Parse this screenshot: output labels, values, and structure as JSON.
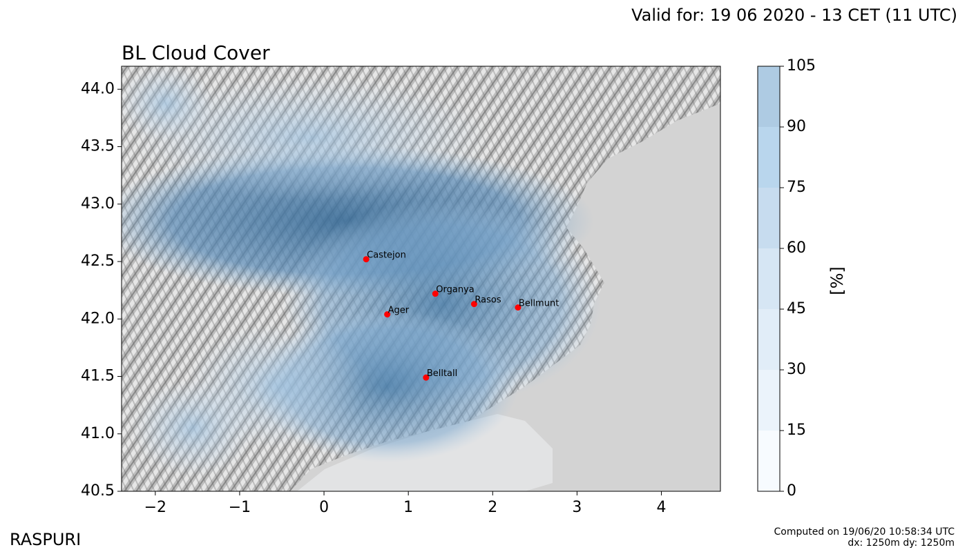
{
  "header": {
    "valid_text": "Valid for: 19 06 2020 - 13 CET (11 UTC)",
    "title": "BL Cloud Cover"
  },
  "footer": {
    "brand": "RASPURI",
    "computed_line1": "Computed on 19/06/20 10:58:34 UTC",
    "computed_line2": "dx: 1250m dy: 1250m"
  },
  "map": {
    "xlim": [
      -2.4,
      4.7
    ],
    "ylim": [
      40.5,
      44.2
    ],
    "x_ticks": [
      -2,
      -1,
      0,
      1,
      2,
      3,
      4
    ],
    "x_tick_labels": [
      "−2",
      "−1",
      "0",
      "1",
      "2",
      "3",
      "4"
    ],
    "y_ticks": [
      40.5,
      41.0,
      41.5,
      42.0,
      42.5,
      43.0,
      43.5,
      44.0
    ],
    "y_tick_labels": [
      "40.5",
      "41.0",
      "41.5",
      "42.0",
      "42.5",
      "43.0",
      "43.5",
      "44.0"
    ],
    "cities": [
      {
        "name": "Castejon",
        "lon": 0.5,
        "lat": 42.52
      },
      {
        "name": "Organya",
        "lon": 1.32,
        "lat": 42.22
      },
      {
        "name": "Rasos",
        "lon": 1.78,
        "lat": 42.13
      },
      {
        "name": "Bellmunt",
        "lon": 2.3,
        "lat": 42.1
      },
      {
        "name": "Ager",
        "lon": 0.75,
        "lat": 42.04
      },
      {
        "name": "Belltall",
        "lon": 1.21,
        "lat": 41.49
      }
    ],
    "colors": {
      "sea": "#d3d3d3",
      "marker": "#ff0000"
    }
  },
  "colorbar": {
    "label": "[%]",
    "ticks": [
      0,
      15,
      30,
      45,
      60,
      75,
      90,
      105
    ],
    "tick_labels": [
      "0",
      "15",
      "30",
      "45",
      "60",
      "75",
      "90",
      "105"
    ],
    "colors": [
      "#f7fbff",
      "#ebf3fb",
      "#e1edf8",
      "#d6e6f4",
      "#c7dcef",
      "#b9d6ed",
      "#aecbe3"
    ]
  }
}
